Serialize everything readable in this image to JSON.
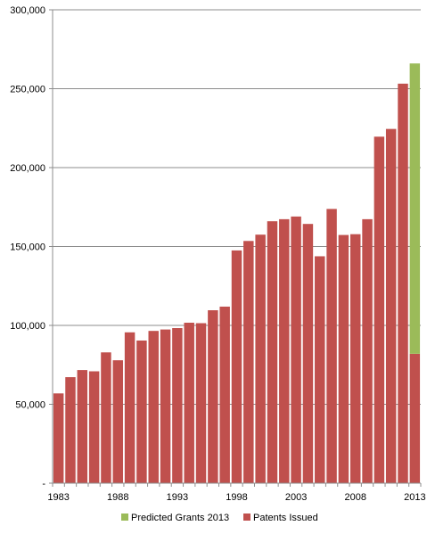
{
  "chart_data": {
    "type": "bar",
    "stacked": true,
    "categories": [
      1983,
      1984,
      1985,
      1986,
      1987,
      1988,
      1989,
      1990,
      1991,
      1992,
      1993,
      1994,
      1995,
      1996,
      1997,
      1998,
      1999,
      2000,
      2001,
      2002,
      2003,
      2004,
      2005,
      2006,
      2007,
      2008,
      2009,
      2010,
      2011,
      2012,
      2013
    ],
    "x_tick_labels": [
      "1983",
      "1988",
      "1993",
      "1998",
      "2003",
      "2008",
      "2013"
    ],
    "y_tick_labels": [
      "-",
      "50,000",
      "100,000",
      "150,000",
      "200,000",
      "250,000",
      "300,000"
    ],
    "ylim": [
      0,
      300000
    ],
    "grid": "horizontal",
    "legend_position": "bottom",
    "series": [
      {
        "name": "Patents Issued",
        "color": "#c0504d",
        "values": [
          56900,
          67200,
          71700,
          70900,
          82900,
          77900,
          95600,
          90400,
          96500,
          97400,
          98300,
          101700,
          101400,
          109600,
          111900,
          147500,
          153500,
          157500,
          166000,
          167300,
          169000,
          164300,
          143800,
          173800,
          157300,
          157800,
          167300,
          219600,
          224500,
          253200,
          82000
        ]
      },
      {
        "name": "Predicted Grants 2013",
        "color": "#9bbb59",
        "values": [
          0,
          0,
          0,
          0,
          0,
          0,
          0,
          0,
          0,
          0,
          0,
          0,
          0,
          0,
          0,
          0,
          0,
          0,
          0,
          0,
          0,
          0,
          0,
          0,
          0,
          0,
          0,
          0,
          0,
          0,
          184000
        ]
      }
    ]
  }
}
